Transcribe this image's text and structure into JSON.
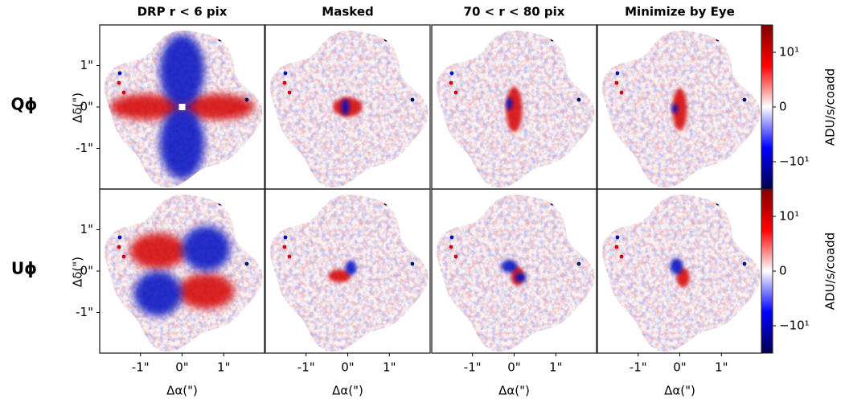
{
  "chart_data": {
    "type": "image_grid",
    "columns": [
      "DRP r < 6 pix",
      "Masked",
      "70 < r < 80 pix",
      "Minimize by Eye"
    ],
    "rows": [
      "Qϕ",
      "Uϕ"
    ],
    "xlabel": "Δα(\")",
    "ylabel": "Δδ(\")",
    "xlim": [
      -1.98,
      1.98
    ],
    "ylim": [
      -1.98,
      1.98
    ],
    "xticks": [
      {
        "value": -1,
        "label": "-1\""
      },
      {
        "value": 0,
        "label": "0\""
      },
      {
        "value": 1,
        "label": "1\""
      }
    ],
    "yticks": [
      {
        "value": -1,
        "label": "-1\""
      },
      {
        "value": 0,
        "label": "0\""
      },
      {
        "value": 1,
        "label": "1\""
      }
    ],
    "colorbar": {
      "label": "ADU/s/coadd",
      "scale": "symlog",
      "linthresh": 1,
      "lim": [
        -100,
        100
      ],
      "ticks": [
        {
          "value": -10,
          "label": "−10¹"
        },
        {
          "value": 0,
          "label": "0"
        },
        {
          "value": 10,
          "label": "10¹"
        }
      ],
      "colors": [
        "#00004c",
        "#0000ff",
        "#ffffff",
        "#ff0000",
        "#800000"
      ]
    }
  }
}
